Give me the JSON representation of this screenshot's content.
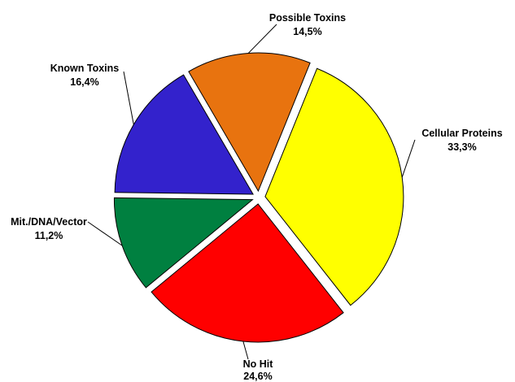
{
  "chart_data": {
    "type": "pie",
    "title": "",
    "slices": [
      {
        "label": "Cellular Proteins",
        "value_text": "33,3%",
        "value": 33.3,
        "color": "#ffff00"
      },
      {
        "label": "No Hit",
        "value_text": "24,6%",
        "value": 24.6,
        "color": "#ff0000"
      },
      {
        "label": "Mit./DNA/Vector",
        "value_text": "11,2%",
        "value": 11.2,
        "color": "#008040"
      },
      {
        "label": "Known Toxins",
        "value_text": "16,4%",
        "value": 16.4,
        "color": "#3322cc"
      },
      {
        "label": "Possible Toxins",
        "value_text": "14,5%",
        "value": 14.5,
        "color": "#e8730f"
      }
    ],
    "legend": "none"
  }
}
